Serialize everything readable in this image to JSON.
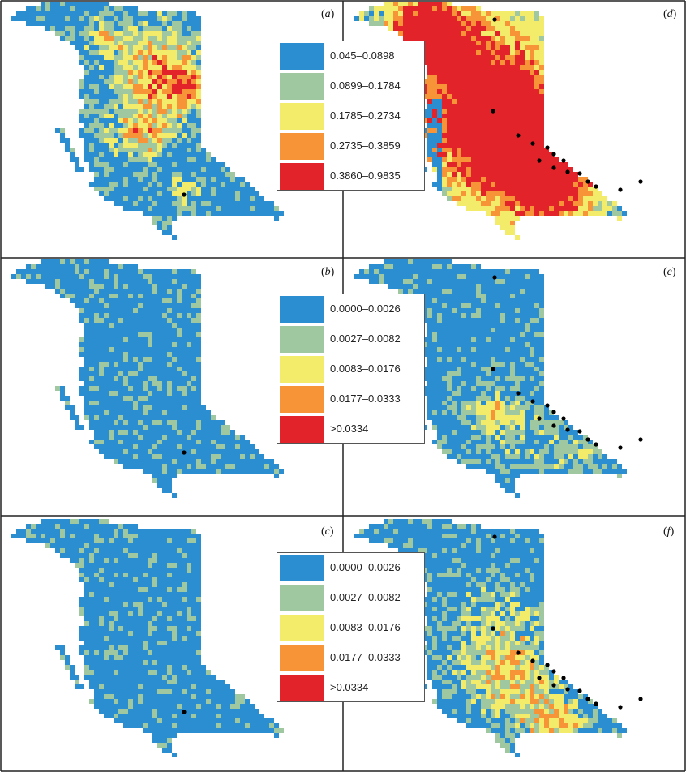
{
  "colors": {
    "blue": "#2a8ed0",
    "green": "#a0c8a0",
    "yellow": "#f2ec6a",
    "orange": "#f79438",
    "red": "#e2242a",
    "site_marker": "#000000",
    "frame": "#222222"
  },
  "panels": [
    {
      "id": "a",
      "label": "a",
      "intensity": 0.55,
      "dots": "few"
    },
    {
      "id": "d",
      "label": "d",
      "intensity": 1.0,
      "dots": "many"
    },
    {
      "id": "b",
      "label": "b",
      "intensity": 0.02,
      "dots": "one"
    },
    {
      "id": "e",
      "label": "e",
      "intensity": 0.35,
      "dots": "many"
    },
    {
      "id": "c",
      "label": "c",
      "intensity": 0.02,
      "dots": "one"
    },
    {
      "id": "f",
      "label": "f",
      "intensity": 0.5,
      "dots": "many"
    }
  ],
  "legends": [
    {
      "id": "top",
      "entries": [
        {
          "color": "blue",
          "label": "0.045–0.0898"
        },
        {
          "color": "green",
          "label": "0.0899–0.1784"
        },
        {
          "color": "yellow",
          "label": "0.1785–0.2734"
        },
        {
          "color": "orange",
          "label": "0.2735–0.3859"
        },
        {
          "color": "red",
          "label": "0.3860–0.9835"
        }
      ]
    },
    {
      "id": "middle",
      "entries": [
        {
          "color": "blue",
          "label": "0.0000–0.0026"
        },
        {
          "color": "green",
          "label": "0.0027–0.0082"
        },
        {
          "color": "yellow",
          "label": "0.0083–0.0176"
        },
        {
          "color": "orange",
          "label": "0.0177–0.0333"
        },
        {
          "color": "red",
          "label": ">0.0334"
        }
      ]
    },
    {
      "id": "bottom",
      "entries": [
        {
          "color": "blue",
          "label": "0.0000–0.0026"
        },
        {
          "color": "green",
          "label": "0.0027–0.0082"
        },
        {
          "color": "yellow",
          "label": "0.0083–0.0176"
        },
        {
          "color": "orange",
          "label": "0.0177–0.0333"
        },
        {
          "color": "red",
          "label": ">0.0334"
        }
      ]
    }
  ]
}
